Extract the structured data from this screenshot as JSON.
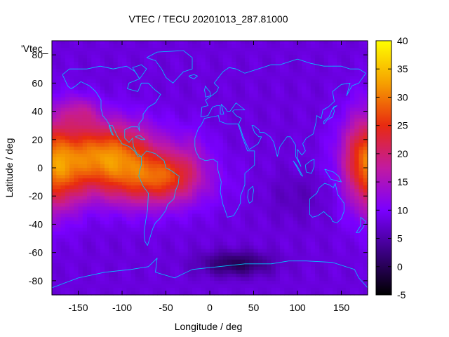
{
  "chart_data": {
    "type": "heatmap",
    "title": "VTEC / TECU 20201013_287.81000",
    "xlabel": "Longitude / deg",
    "ylabel": "Latitude / deg",
    "xlim": [
      -180,
      180
    ],
    "ylim": [
      -90,
      90
    ],
    "xticks": [
      -150,
      -100,
      -50,
      0,
      50,
      100,
      150
    ],
    "yticks": [
      -80,
      -60,
      -40,
      -20,
      0,
      20,
      40,
      60,
      80
    ],
    "colorbar": {
      "min": -5,
      "max": 40,
      "ticks": [
        -5,
        0,
        5,
        10,
        15,
        20,
        25,
        30,
        35,
        40
      ],
      "palette": [
        "#000000",
        "#3a0080",
        "#7a00ff",
        "#c21aa0",
        "#e82a10",
        "#f6a000",
        "#ffff00"
      ]
    },
    "background_value": 8,
    "field_features": [
      {
        "lon": -120,
        "lat": 10,
        "sigma_lon": 42,
        "sigma_lat": 16,
        "value": 21
      },
      {
        "lon": -70,
        "lat": -10,
        "sigma_lon": 45,
        "sigma_lat": 14,
        "value": 13
      },
      {
        "lon": -45,
        "lat": -5,
        "sigma_lon": 22,
        "sigma_lat": 10,
        "value": 6
      },
      {
        "lon": -165,
        "lat": -8,
        "sigma_lon": 18,
        "sigma_lat": 18,
        "value": 8
      },
      {
        "lon": 175,
        "lat": 5,
        "sigma_lon": 18,
        "sigma_lat": 25,
        "value": 12
      },
      {
        "lon": -148,
        "lat": 40,
        "sigma_lon": 15,
        "sigma_lat": 8,
        "value": 7
      },
      {
        "lon": -20,
        "lat": 12,
        "sigma_lon": 15,
        "sigma_lat": 12,
        "value": 3
      },
      {
        "lon": 30,
        "lat": -68,
        "sigma_lon": 28,
        "sigma_lat": 6,
        "value": -8
      },
      {
        "lon": 100,
        "lat": -20,
        "sigma_lon": 25,
        "sigma_lat": 12,
        "value": -2
      }
    ],
    "legend_text": "'Vtec_",
    "overlay": "coastlines"
  }
}
